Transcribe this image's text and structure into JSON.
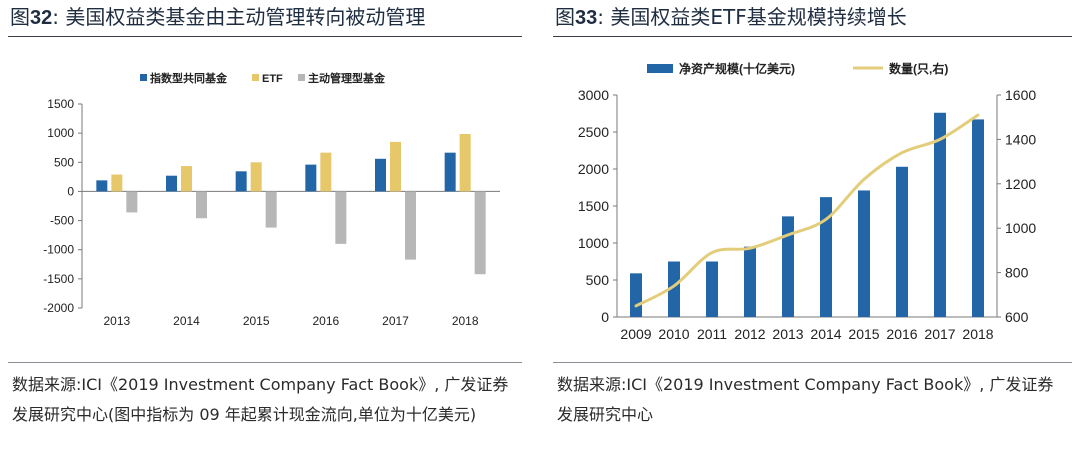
{
  "colors": {
    "blue": "#2366a8",
    "gold": "#e6c76a",
    "gray": "#b7b7b7",
    "line": "#e3cd7a"
  },
  "left": {
    "title_prefix": "图",
    "title_num": "32",
    "title_colon": ":",
    "title_text": "美国权益类基金由主动管理转向被动管理",
    "source_text": "数据来源:ICI《2019 Investment Company Fact Book》, 广发证券发展研究中心(图中指标为 09 年起累计现金流向,单位为十亿美元)"
  },
  "right": {
    "title_prefix": "图",
    "title_num": "33",
    "title_colon": ":",
    "title_text": "美国权益类ETF基金规模持续增长",
    "source_text": "数据来源:ICI《2019 Investment Company Fact Book》, 广发证券发展研究中心"
  },
  "chart_data": [
    {
      "type": "bar",
      "title": "美国权益类基金由主动管理转向被动管理",
      "categories": [
        "2013",
        "2014",
        "2015",
        "2016",
        "2017",
        "2018"
      ],
      "series": [
        {
          "name": "指数型共同基金",
          "color": "#2366a8",
          "values": [
            190,
            270,
            345,
            460,
            560,
            665
          ]
        },
        {
          "name": "ETF",
          "color": "#e6c76a",
          "values": [
            290,
            435,
            500,
            665,
            850,
            985
          ]
        },
        {
          "name": "主动管理型基金",
          "color": "#b7b7b7",
          "values": [
            -360,
            -460,
            -620,
            -900,
            -1170,
            -1420
          ]
        }
      ],
      "yticks": [
        -2000,
        -1500,
        -1000,
        -500,
        0,
        500,
        1000,
        1500
      ],
      "ylim": [
        -2000,
        1500
      ],
      "xlabel": "",
      "ylabel": "",
      "legend": "top"
    },
    {
      "type": "bar+line",
      "title": "美国权益类ETF基金规模持续增长",
      "categories": [
        "2009",
        "2010",
        "2011",
        "2012",
        "2013",
        "2014",
        "2015",
        "2016",
        "2017",
        "2018"
      ],
      "series": [
        {
          "name": "净资产规模(十亿美元)",
          "type": "bar",
          "axis": "left",
          "color": "#2366a8",
          "values": [
            590,
            750,
            750,
            950,
            1360,
            1620,
            1710,
            2030,
            2760,
            2670
          ]
        },
        {
          "name": "数量(只,右)",
          "type": "line",
          "axis": "right",
          "color": "#e3cd7a",
          "values": [
            650,
            740,
            890,
            910,
            970,
            1040,
            1220,
            1340,
            1400,
            1510
          ]
        }
      ],
      "yticks_left": [
        0,
        500,
        1000,
        1500,
        2000,
        2500,
        3000
      ],
      "ylim_left": [
        0,
        3000
      ],
      "yticks_right": [
        600,
        800,
        1000,
        1200,
        1400,
        1600
      ],
      "ylim_right": [
        600,
        1600
      ],
      "legend": "top"
    }
  ]
}
